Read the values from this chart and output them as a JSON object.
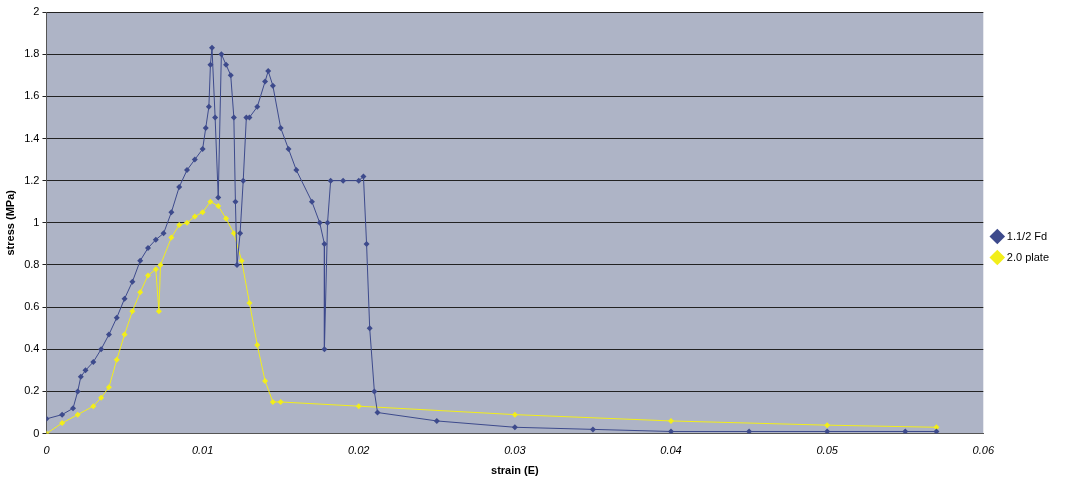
{
  "chart_data": {
    "type": "line",
    "xlabel": "strain (E)",
    "ylabel": "stress (MPa)",
    "xlim": [
      0,
      0.06
    ],
    "xticks": [
      0,
      0.01,
      0.02,
      0.03,
      0.04,
      0.05,
      0.06
    ],
    "ylim": [
      0,
      2
    ],
    "yticks": [
      0,
      0.2,
      0.4,
      0.6,
      0.8,
      1,
      1.2,
      1.4,
      1.6,
      1.8,
      2
    ],
    "grid": "y",
    "legend": "right",
    "marker": "diamond",
    "line_style": "solid",
    "series": [
      {
        "name": "1.1/2 Fd",
        "color": "#3d4a8c",
        "x": [
          0,
          0.001,
          0.0017,
          0.002,
          0.0022,
          0.0025,
          0.003,
          0.0035,
          0.004,
          0.0045,
          0.005,
          0.0055,
          0.006,
          0.0065,
          0.007,
          0.0075,
          0.008,
          0.0085,
          0.009,
          0.0095,
          0.01,
          0.0102,
          0.0104,
          0.0105,
          0.0106,
          0.0108,
          0.011,
          0.0112,
          0.0115,
          0.0118,
          0.012,
          0.0121,
          0.0122,
          0.0124,
          0.0126,
          0.0128,
          0.013,
          0.0135,
          0.014,
          0.0142,
          0.0145,
          0.015,
          0.0155,
          0.016,
          0.017,
          0.0175,
          0.0178,
          0.0178,
          0.018,
          0.0182,
          0.019,
          0.02,
          0.0203,
          0.0205,
          0.0207,
          0.021,
          0.0212,
          0.025,
          0.03,
          0.035,
          0.04,
          0.045,
          0.05,
          0.055,
          0.057
        ],
        "values": [
          0.07,
          0.09,
          0.12,
          0.2,
          0.27,
          0.3,
          0.34,
          0.4,
          0.47,
          0.55,
          0.64,
          0.72,
          0.82,
          0.88,
          0.92,
          0.95,
          1.05,
          1.17,
          1.25,
          1.3,
          1.35,
          1.45,
          1.55,
          1.75,
          1.83,
          1.5,
          1.12,
          1.8,
          1.75,
          1.7,
          1.5,
          1.1,
          0.8,
          0.95,
          1.2,
          1.5,
          1.5,
          1.55,
          1.67,
          1.72,
          1.65,
          1.45,
          1.35,
          1.25,
          1.1,
          1.0,
          0.9,
          0.4,
          1.0,
          1.2,
          1.2,
          1.2,
          1.22,
          0.9,
          0.5,
          0.2,
          0.1,
          0.06,
          0.03,
          0.02,
          0.01,
          0.01,
          0.01,
          0.01,
          0.01
        ]
      },
      {
        "name": "2.0 plate",
        "color": "#f2ee1a",
        "x": [
          0,
          0.001,
          0.002,
          0.003,
          0.0035,
          0.004,
          0.0045,
          0.005,
          0.0055,
          0.006,
          0.0065,
          0.007,
          0.0072,
          0.0073,
          0.008,
          0.0085,
          0.009,
          0.0095,
          0.01,
          0.0105,
          0.011,
          0.0115,
          0.012,
          0.0125,
          0.013,
          0.0135,
          0.014,
          0.0145,
          0.015,
          0.02,
          0.03,
          0.04,
          0.05,
          0.057
        ],
        "values": [
          0,
          0.05,
          0.09,
          0.13,
          0.17,
          0.22,
          0.35,
          0.47,
          0.58,
          0.67,
          0.75,
          0.78,
          0.58,
          0.8,
          0.93,
          0.99,
          1.0,
          1.03,
          1.05,
          1.1,
          1.08,
          1.02,
          0.95,
          0.82,
          0.62,
          0.42,
          0.25,
          0.15,
          0.15,
          0.13,
          0.09,
          0.06,
          0.04,
          0.03
        ]
      }
    ]
  }
}
